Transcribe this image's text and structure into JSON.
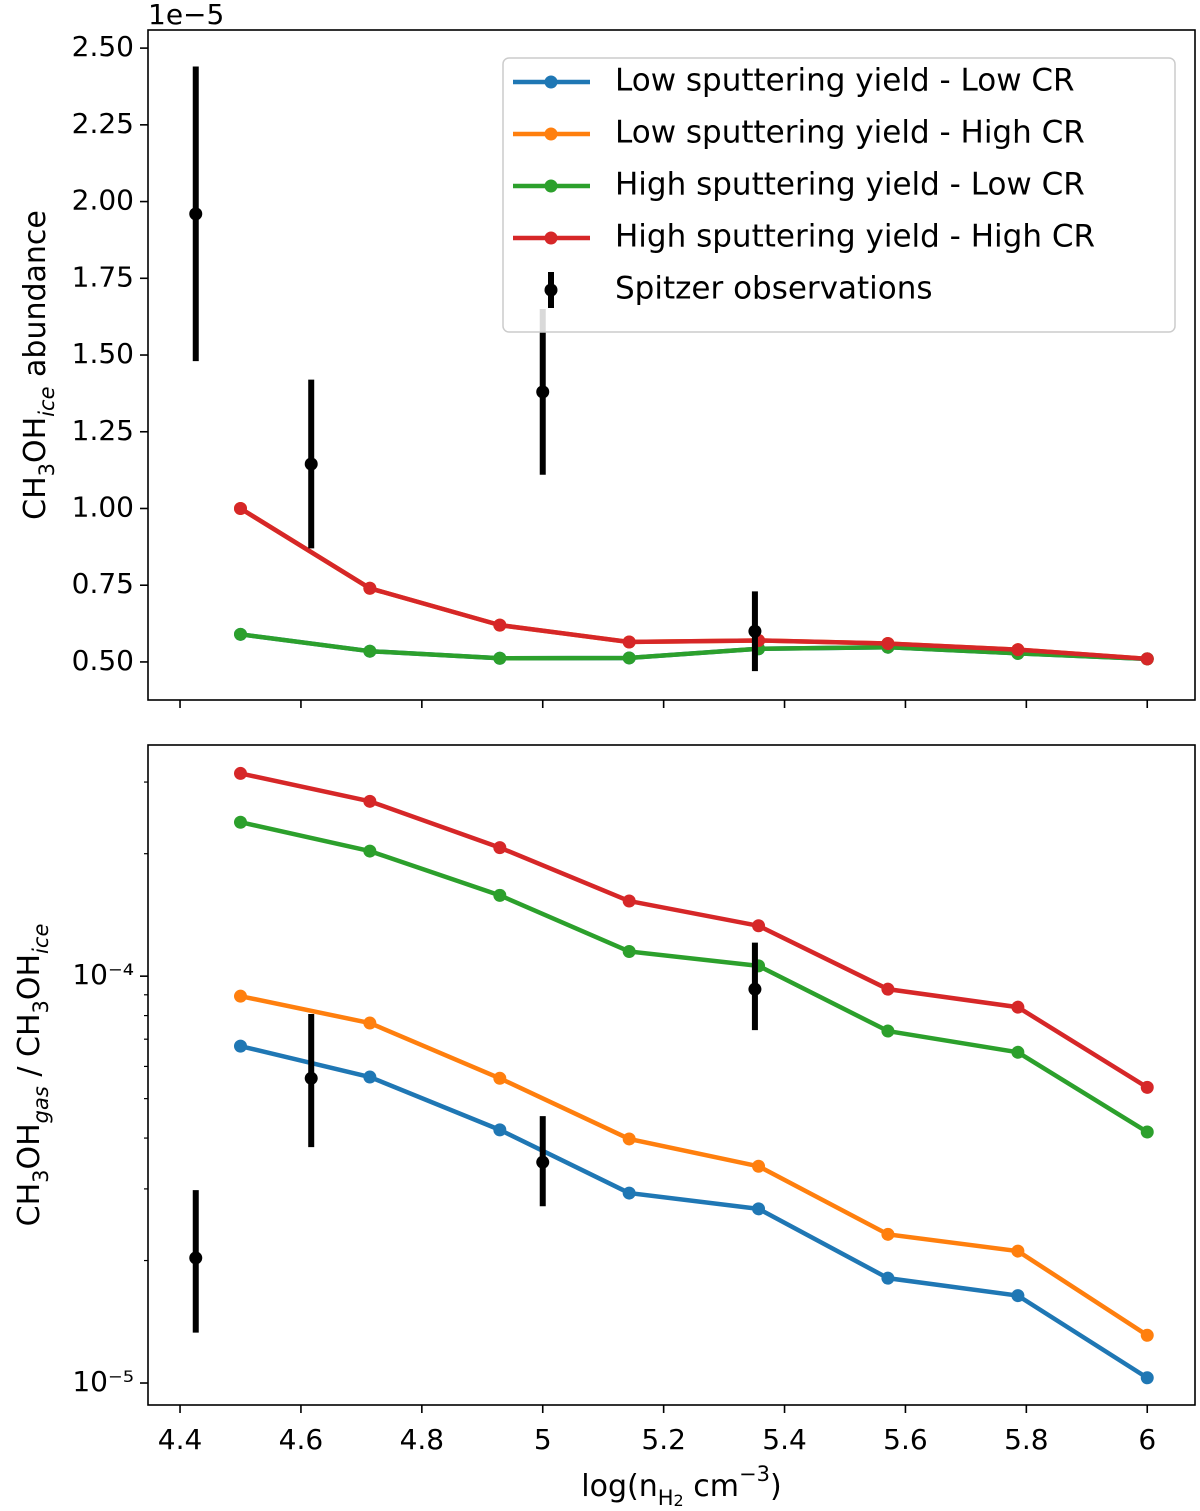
{
  "chart_data": [
    {
      "type": "line",
      "y_offset_label": "1e−5",
      "ylabel": [
        "CH",
        "3",
        "OH",
        "ice",
        " abundance"
      ],
      "xlim": [
        4.347,
        6.079
      ],
      "xticks": [
        4.4,
        4.6,
        4.8,
        5.0,
        5.2,
        5.4,
        5.6,
        5.8,
        6.0
      ],
      "xtick_labels": false,
      "ylim": [
        0.376,
        2.559
      ],
      "yticks": [
        {
          "value": 0.5,
          "label": "0.50"
        },
        {
          "value": 0.75,
          "label": "0.75"
        },
        {
          "value": 1.0,
          "label": "1.00"
        },
        {
          "value": 1.25,
          "label": "1.25"
        },
        {
          "value": 1.5,
          "label": "1.50"
        },
        {
          "value": 1.75,
          "label": "1.75"
        },
        {
          "value": 2.0,
          "label": "2.00"
        },
        {
          "value": 2.25,
          "label": "2.25"
        },
        {
          "value": 2.5,
          "label": "2.50"
        }
      ],
      "log_y": false,
      "legend": "upper right",
      "series": [
        {
          "name": "Low sputtering yield - Low CR",
          "color": "#1f77b4",
          "x": [
            4.5,
            4.714,
            4.929,
            5.143,
            5.357,
            5.571,
            5.786,
            6.0
          ],
          "values": [
            0.59,
            0.535,
            0.512,
            0.513,
            0.543,
            0.548,
            0.528,
            0.51
          ]
        },
        {
          "name": "Low sputtering yield - High CR",
          "color": "#ff7f0e",
          "x": [
            4.5,
            4.714,
            4.929,
            5.143,
            5.357,
            5.571,
            5.786,
            6.0
          ],
          "values": [
            1.0,
            0.74,
            0.62,
            0.565,
            0.57,
            0.56,
            0.54,
            0.51
          ]
        },
        {
          "name": "High sputtering yield - Low CR",
          "color": "#2ca02c",
          "x": [
            4.5,
            4.714,
            4.929,
            5.143,
            5.357,
            5.571,
            5.786,
            6.0
          ],
          "values": [
            0.59,
            0.535,
            0.512,
            0.513,
            0.543,
            0.548,
            0.528,
            0.51
          ]
        },
        {
          "name": "High sputtering yield - High CR",
          "color": "#d62728",
          "x": [
            4.5,
            4.714,
            4.929,
            5.143,
            5.357,
            5.571,
            5.786,
            6.0
          ],
          "values": [
            1.0,
            0.74,
            0.62,
            0.565,
            0.57,
            0.56,
            0.54,
            0.51
          ]
        },
        {
          "name": "Spitzer observations",
          "color": "#000000",
          "errorbar": true,
          "x": [
            4.426,
            4.617,
            5.0,
            5.351
          ],
          "values": [
            1.96,
            1.145,
            1.38,
            0.6
          ],
          "yerr": [
            0.48,
            0.275,
            0.27,
            0.13
          ]
        }
      ]
    },
    {
      "type": "line",
      "ylabel": [
        "CH",
        "3",
        "OH",
        "gas",
        " / CH",
        "3",
        "OH",
        "ice"
      ],
      "xlabel": [
        "log(n",
        "H",
        "2",
        " cm",
        "−3",
        ")"
      ],
      "xlim": [
        4.347,
        6.079
      ],
      "xticks": [
        4.4,
        4.6,
        4.8,
        5.0,
        5.2,
        5.4,
        5.6,
        5.8,
        6.0
      ],
      "ylim": [
        8.83e-06,
        0.00037
      ],
      "log_y": true,
      "yticks": [
        {
          "value": 1e-05,
          "label": "10⁻⁵"
        },
        {
          "value": 0.0001,
          "label": "10⁻⁴"
        }
      ],
      "yminorticks": [
        2e-05,
        3e-05,
        4e-05,
        5e-05,
        6e-05,
        7e-05,
        8e-05,
        9e-05,
        0.0002,
        0.0003
      ],
      "series": [
        {
          "color": "#1f77b4",
          "x": [
            4.5,
            4.714,
            4.929,
            5.143,
            5.357,
            5.571,
            5.786,
            6.0
          ],
          "values": [
            6.73e-05,
            5.65e-05,
            4.19e-05,
            2.93e-05,
            2.68e-05,
            1.81e-05,
            1.64e-05,
            1.03e-05
          ]
        },
        {
          "color": "#ff7f0e",
          "x": [
            4.5,
            4.714,
            4.929,
            5.143,
            5.357,
            5.571,
            5.786,
            6.0
          ],
          "values": [
            8.93e-05,
            7.67e-05,
            5.61e-05,
            3.98e-05,
            3.41e-05,
            2.32e-05,
            2.11e-05,
            1.31e-05
          ]
        },
        {
          "color": "#2ca02c",
          "x": [
            4.5,
            4.714,
            4.929,
            5.143,
            5.357,
            5.571,
            5.786,
            6.0
          ],
          "values": [
            0.000239,
            0.000203,
            0.000158,
            0.000115,
            0.000106,
            7.33e-05,
            6.5e-05,
            4.14e-05
          ]
        },
        {
          "color": "#d62728",
          "x": [
            4.5,
            4.714,
            4.929,
            5.143,
            5.357,
            5.571,
            5.786,
            6.0
          ],
          "values": [
            0.000315,
            0.000269,
            0.000207,
            0.000153,
            0.000133,
            9.29e-05,
            8.39e-05,
            5.33e-05
          ]
        },
        {
          "color": "#000000",
          "errorbar": true,
          "x": [
            4.426,
            4.617,
            5.0,
            5.351
          ],
          "values": [
            2.03e-05,
            5.61e-05,
            3.49e-05,
            9.29e-05
          ],
          "yerr": [
            [
              7e-06,
              9.5e-06
            ],
            [
              1.81e-05,
              2.46e-05
            ],
            [
              7.7e-06,
              1.04e-05
            ],
            [
              1.92e-05,
              2.8e-05
            ]
          ]
        }
      ]
    }
  ]
}
